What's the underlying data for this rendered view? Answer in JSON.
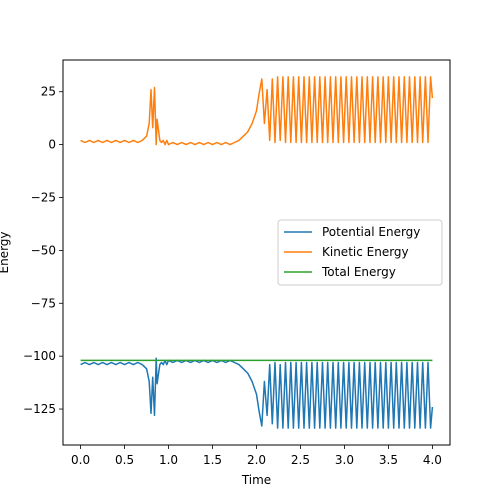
{
  "chart_data": {
    "type": "line",
    "xlabel": "Time",
    "ylabel": "Energy",
    "xlim": [
      -0.2,
      4.2
    ],
    "ylim": [
      -142,
      40
    ],
    "xticks": [
      0.0,
      0.5,
      1.0,
      1.5,
      2.0,
      2.5,
      3.0,
      3.5,
      4.0
    ],
    "xtick_labels": [
      "0.0",
      "0.5",
      "1.0",
      "1.5",
      "2.0",
      "2.5",
      "3.0",
      "3.5",
      "4.0"
    ],
    "yticks": [
      25,
      0,
      -25,
      -50,
      -75,
      -100,
      -125
    ],
    "ytick_labels": [
      "25",
      "0",
      "−25",
      "−50",
      "−75",
      "−100",
      "−125"
    ],
    "grid": false,
    "legend_position": "center-right",
    "series": [
      {
        "name": "Potential Energy",
        "color": "#1f77b4",
        "x": [
          0.0,
          0.05,
          0.1,
          0.15,
          0.2,
          0.25,
          0.3,
          0.35,
          0.4,
          0.45,
          0.5,
          0.55,
          0.6,
          0.65,
          0.7,
          0.75,
          0.78,
          0.8,
          0.82,
          0.84,
          0.86,
          0.87,
          0.9,
          0.92,
          0.94,
          0.96,
          0.98,
          1.0,
          1.05,
          1.1,
          1.15,
          1.2,
          1.25,
          1.3,
          1.35,
          1.4,
          1.45,
          1.5,
          1.55,
          1.6,
          1.65,
          1.7,
          1.75,
          1.8,
          1.85,
          1.9,
          1.95,
          2.0,
          2.03,
          2.06,
          2.09,
          2.12,
          2.15,
          2.18,
          2.21,
          2.24,
          2.27,
          2.3,
          2.33,
          2.36,
          2.39,
          2.42,
          2.45,
          2.48,
          2.51,
          2.54,
          2.57,
          2.6,
          2.63,
          2.66,
          2.69,
          2.72,
          2.75,
          2.78,
          2.81,
          2.84,
          2.87,
          2.9,
          2.93,
          2.96,
          2.99,
          3.02,
          3.05,
          3.08,
          3.11,
          3.14,
          3.17,
          3.2,
          3.23,
          3.26,
          3.29,
          3.32,
          3.35,
          3.38,
          3.41,
          3.44,
          3.47,
          3.5,
          3.53,
          3.56,
          3.59,
          3.62,
          3.65,
          3.68,
          3.71,
          3.74,
          3.77,
          3.8,
          3.83,
          3.86,
          3.89,
          3.92,
          3.95,
          3.98,
          4.0
        ],
        "y": [
          -104,
          -103,
          -104,
          -103,
          -104,
          -103,
          -104,
          -103,
          -104,
          -103,
          -104,
          -103,
          -104,
          -103,
          -104,
          -106,
          -112,
          -127,
          -110,
          -128,
          -101,
          -113,
          -104,
          -103,
          -104,
          -102,
          -104,
          -102,
          -103,
          -102,
          -103,
          -102,
          -103,
          -102,
          -103,
          -102,
          -103,
          -102,
          -103,
          -102,
          -103,
          -102,
          -103,
          -104,
          -106,
          -108,
          -112,
          -118,
          -126,
          -133,
          -112,
          -128,
          -104,
          -132,
          -103,
          -134,
          -104,
          -134,
          -103,
          -134,
          -103,
          -134,
          -103,
          -134,
          -103,
          -134,
          -103,
          -134,
          -103,
          -134,
          -103,
          -134,
          -103,
          -134,
          -103,
          -134,
          -103,
          -134,
          -103,
          -134,
          -103,
          -134,
          -103,
          -134,
          -103,
          -134,
          -103,
          -134,
          -103,
          -134,
          -103,
          -134,
          -103,
          -134,
          -103,
          -134,
          -103,
          -134,
          -103,
          -134,
          -103,
          -134,
          -103,
          -134,
          -103,
          -134,
          -103,
          -134,
          -103,
          -134,
          -103,
          -134,
          -103,
          -134,
          -124
        ]
      },
      {
        "name": "Kinetic Energy",
        "color": "#ff7f0e",
        "x": [
          0.0,
          0.05,
          0.1,
          0.15,
          0.2,
          0.25,
          0.3,
          0.35,
          0.4,
          0.45,
          0.5,
          0.55,
          0.6,
          0.65,
          0.7,
          0.75,
          0.78,
          0.8,
          0.82,
          0.84,
          0.86,
          0.87,
          0.9,
          0.92,
          0.94,
          0.96,
          0.98,
          1.0,
          1.05,
          1.1,
          1.15,
          1.2,
          1.25,
          1.3,
          1.35,
          1.4,
          1.45,
          1.5,
          1.55,
          1.6,
          1.65,
          1.7,
          1.75,
          1.8,
          1.85,
          1.9,
          1.95,
          2.0,
          2.03,
          2.06,
          2.09,
          2.12,
          2.15,
          2.18,
          2.21,
          2.24,
          2.27,
          2.3,
          2.33,
          2.36,
          2.39,
          2.42,
          2.45,
          2.48,
          2.51,
          2.54,
          2.57,
          2.6,
          2.63,
          2.66,
          2.69,
          2.72,
          2.75,
          2.78,
          2.81,
          2.84,
          2.87,
          2.9,
          2.93,
          2.96,
          2.99,
          3.02,
          3.05,
          3.08,
          3.11,
          3.14,
          3.17,
          3.2,
          3.23,
          3.26,
          3.29,
          3.32,
          3.35,
          3.38,
          3.41,
          3.44,
          3.47,
          3.5,
          3.53,
          3.56,
          3.59,
          3.62,
          3.65,
          3.68,
          3.71,
          3.74,
          3.77,
          3.8,
          3.83,
          3.86,
          3.89,
          3.92,
          3.95,
          3.98,
          4.0
        ],
        "y": [
          2,
          1,
          2,
          1,
          2,
          1,
          2,
          1,
          2,
          1,
          2,
          1,
          2,
          1,
          2,
          4,
          10,
          26,
          8,
          27,
          0,
          12,
          2,
          1,
          2,
          0,
          2,
          0,
          1,
          0,
          1,
          0,
          1,
          0,
          1,
          0,
          1,
          0,
          1,
          0,
          1,
          0,
          1,
          2,
          4,
          6,
          10,
          16,
          24,
          31,
          10,
          26,
          2,
          31,
          1,
          32,
          2,
          32,
          1,
          32,
          1,
          32,
          1,
          32,
          1,
          32,
          1,
          32,
          1,
          32,
          1,
          32,
          1,
          32,
          1,
          32,
          1,
          32,
          1,
          32,
          1,
          32,
          1,
          32,
          1,
          32,
          1,
          32,
          1,
          32,
          1,
          32,
          1,
          32,
          1,
          32,
          1,
          32,
          1,
          32,
          1,
          32,
          1,
          32,
          1,
          32,
          1,
          32,
          1,
          32,
          1,
          32,
          1,
          32,
          22
        ]
      },
      {
        "name": "Total Energy",
        "color": "#2ca02c",
        "x": [
          0.0,
          4.0
        ],
        "y": [
          -102,
          -102
        ]
      }
    ]
  }
}
